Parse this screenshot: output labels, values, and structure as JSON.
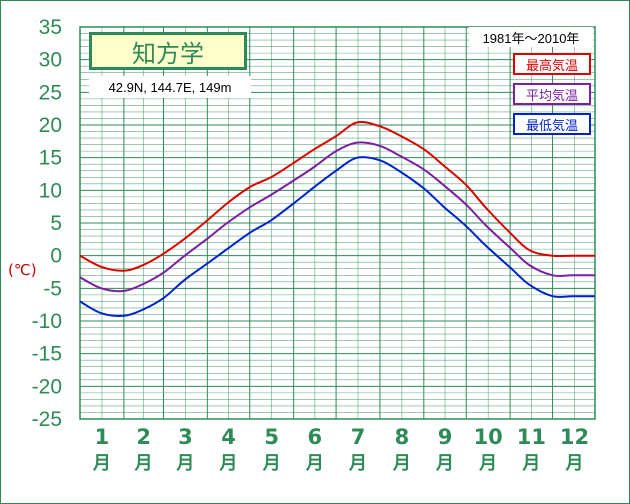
{
  "chart_data": {
    "type": "line",
    "title": "知方学",
    "subtitle": "42.9N,  144.7E,  149m",
    "period": "1981年〜2010年",
    "ylabel": "(℃)",
    "ylim": [
      -25,
      35
    ],
    "yticks": [
      "35",
      "30",
      "25",
      "20",
      "15",
      "10",
      "5",
      "0",
      "-5",
      "-10",
      "-15",
      "-20",
      "-25"
    ],
    "months": [
      "1",
      "2",
      "3",
      "4",
      "5",
      "6",
      "7",
      "8",
      "9",
      "10",
      "11",
      "12"
    ],
    "month_suffix": "月",
    "grid": true,
    "legend_position": "top-right",
    "x_day_positions": [
      1,
      16,
      32,
      46,
      60,
      75,
      91,
      105,
      121,
      136,
      152,
      166,
      182,
      197,
      213,
      227,
      244,
      258,
      274,
      288,
      305,
      319,
      335,
      349,
      365
    ],
    "series": [
      {
        "name": "最高気温",
        "color": "#dd0000",
        "values": [
          0.0,
          -1.7,
          -2.3,
          -1.4,
          0.3,
          2.6,
          5.4,
          8.0,
          10.5,
          12.0,
          14.2,
          16.2,
          18.3,
          20.4,
          19.8,
          18.4,
          16.3,
          13.8,
          10.8,
          7.3,
          3.5,
          0.8,
          0.0,
          0.0,
          0.0
        ]
      },
      {
        "name": "平均気温",
        "color": "#7b1fa2",
        "values": [
          -3.3,
          -5.0,
          -5.4,
          -4.3,
          -2.6,
          0.0,
          2.6,
          5.0,
          7.4,
          9.3,
          11.5,
          13.5,
          16.0,
          17.3,
          16.8,
          15.3,
          13.2,
          10.8,
          7.8,
          4.6,
          1.2,
          -1.5,
          -3.0,
          -3.0,
          -3.0
        ]
      },
      {
        "name": "最低気温",
        "color": "#0022cc",
        "values": [
          -7.0,
          -8.8,
          -9.2,
          -8.2,
          -6.5,
          -3.7,
          -1.2,
          1.0,
          3.5,
          5.4,
          8.0,
          10.4,
          13.0,
          15.0,
          14.6,
          12.9,
          10.3,
          7.5,
          4.5,
          1.5,
          -1.8,
          -4.5,
          -6.2,
          -6.2,
          -6.2
        ]
      }
    ]
  }
}
